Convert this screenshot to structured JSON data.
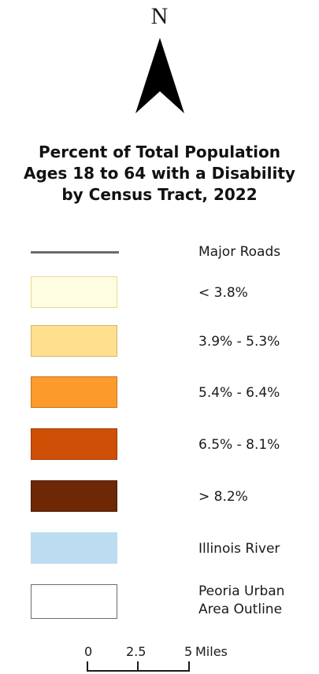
{
  "north_arrow": {
    "label": "N"
  },
  "title": {
    "line1": "Percent of Total Population",
    "line2": "Ages 18 to 64 with a Disability",
    "line3": "by Census Tract, 2022"
  },
  "legend": {
    "roads": {
      "label": "Major Roads",
      "color": "#6b6b6b"
    },
    "classes": [
      {
        "label": "< 3.8%",
        "fill": "#fffde1",
        "border": "#e9d98a"
      },
      {
        "label": "3.9% - 5.3%",
        "fill": "#ffe08f",
        "border": "#d9b461"
      },
      {
        "label": "5.4% - 6.4%",
        "fill": "#fc9a2c",
        "border": "#c9711a"
      },
      {
        "label": "6.5% - 8.1%",
        "fill": "#cf4f06",
        "border": "#9a3a05"
      },
      {
        "label": "> 8.2%",
        "fill": "#6e2806",
        "border": "#4d1a03"
      }
    ],
    "river": {
      "label": "Illinois River",
      "fill": "#bcdcf1"
    },
    "outline": {
      "line1": "Peoria Urban",
      "line2": "Area Outline",
      "border": "#6b6b6b"
    }
  },
  "scale_bar": {
    "labels": [
      "0",
      "2.5",
      "5"
    ],
    "unit": "Miles"
  }
}
